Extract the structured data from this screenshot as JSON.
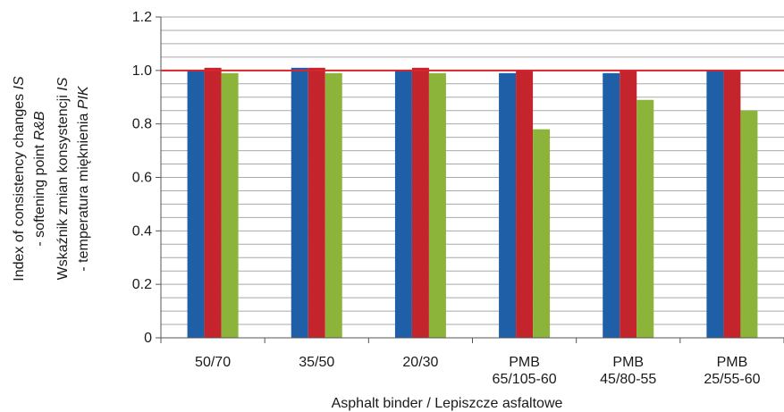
{
  "chart_data": {
    "type": "bar",
    "categories": [
      [
        "50/70"
      ],
      [
        "35/50"
      ],
      [
        "20/30"
      ],
      [
        "PMB",
        "65/105-60"
      ],
      [
        "PMB",
        "45/80-55"
      ],
      [
        "PMB",
        "25/55-60"
      ]
    ],
    "series": [
      {
        "color": "#1f5fa8",
        "values": [
          1.0,
          1.01,
          1.0,
          0.99,
          0.99,
          1.0
        ]
      },
      {
        "color": "#c4252c",
        "values": [
          1.01,
          1.01,
          1.01,
          1.0,
          1.0,
          1.0
        ]
      },
      {
        "color": "#8db43a",
        "values": [
          0.99,
          0.99,
          0.99,
          0.78,
          0.89,
          0.85
        ]
      }
    ],
    "ylim": [
      0,
      1.2
    ],
    "yticks": [
      "0",
      "0.2",
      "0.4",
      "0.6",
      "0.8",
      "1.0",
      "1.2"
    ],
    "ytick_values": [
      0,
      0.2,
      0.4,
      0.6,
      0.8,
      1.0,
      1.2
    ],
    "minor_grid_step": 0.05,
    "reference_line": {
      "value": 1.0,
      "color": "#d8242c"
    },
    "xlabel": "Asphalt binder / Lepiszcze asfaltowe",
    "ylabel_lines": [
      [
        {
          "t": "Index of consistency changes "
        },
        {
          "t": "IS",
          "i": true
        }
      ],
      [
        {
          "t": "- softening point "
        },
        {
          "t": "R&B",
          "i": true
        }
      ],
      [
        {
          "t": "Wskaźnik zmian konsystencji "
        },
        {
          "t": "IS",
          "i": true
        }
      ],
      [
        {
          "t": "- temperatura mięknienia "
        },
        {
          "t": "PIK",
          "i": true
        }
      ]
    ],
    "grid": true,
    "legend": "none"
  }
}
